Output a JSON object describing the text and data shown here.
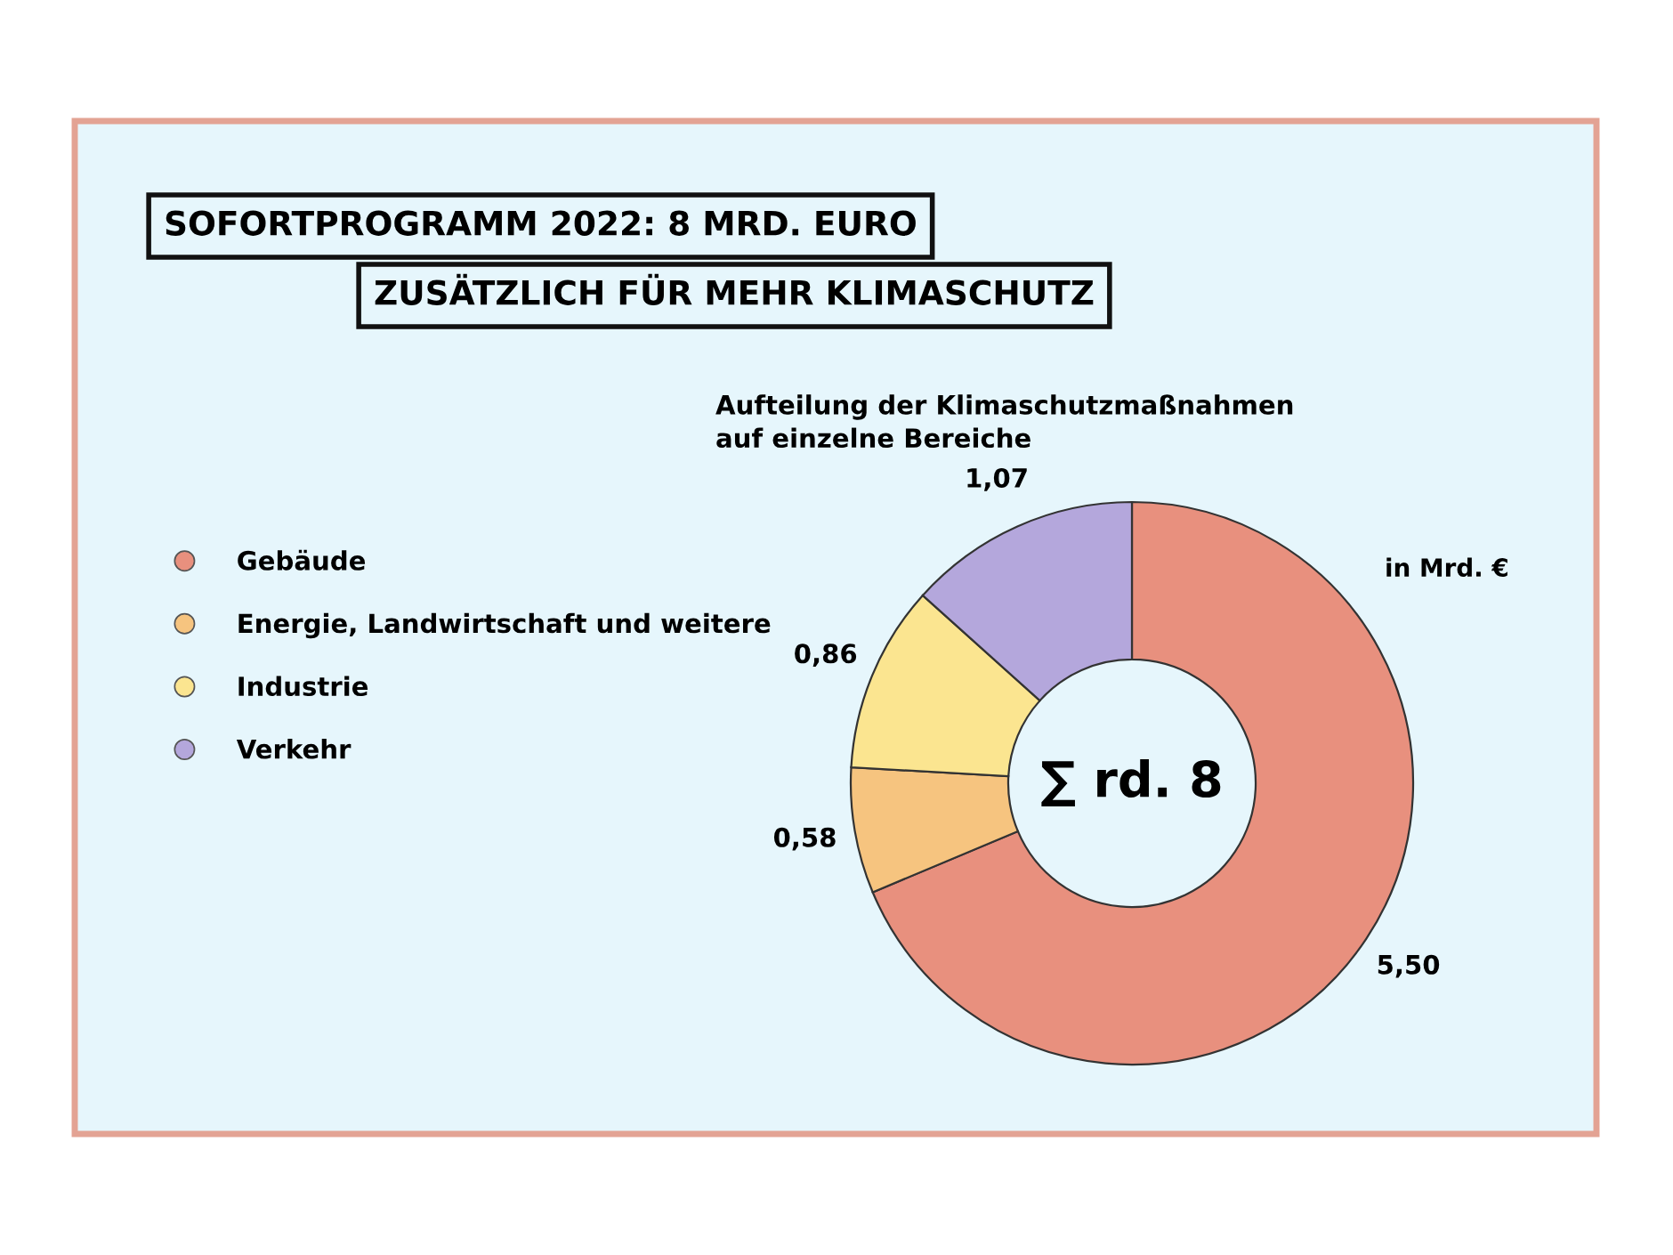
{
  "chart_data": {
    "type": "donut",
    "title": "SOFORTPROGRAMM 2022: 8 MRD. EURO",
    "subtitle": "ZUSÄTZLICH FÜR MEHR KLIMASCHUTZ",
    "annotations": [
      "Aufteilung der Klimaschutzmaßnahmen\nauf einzelne Bereiche",
      "in Mrd. €",
      "∑ rd. 8"
    ],
    "categories": [
      "Gebäude",
      "Energie, Landwirtschaft und weitere",
      "Industrie",
      "Verkehr"
    ],
    "values": [
      5.5,
      0.58,
      0.86,
      1.07
    ],
    "value_labels": [
      "5,50",
      "0,58",
      "0,86",
      "1,07"
    ],
    "colors": [
      "#e8907e",
      "#f6c47f",
      "#fbe590",
      "#b4a7dc"
    ],
    "legend": "left"
  }
}
